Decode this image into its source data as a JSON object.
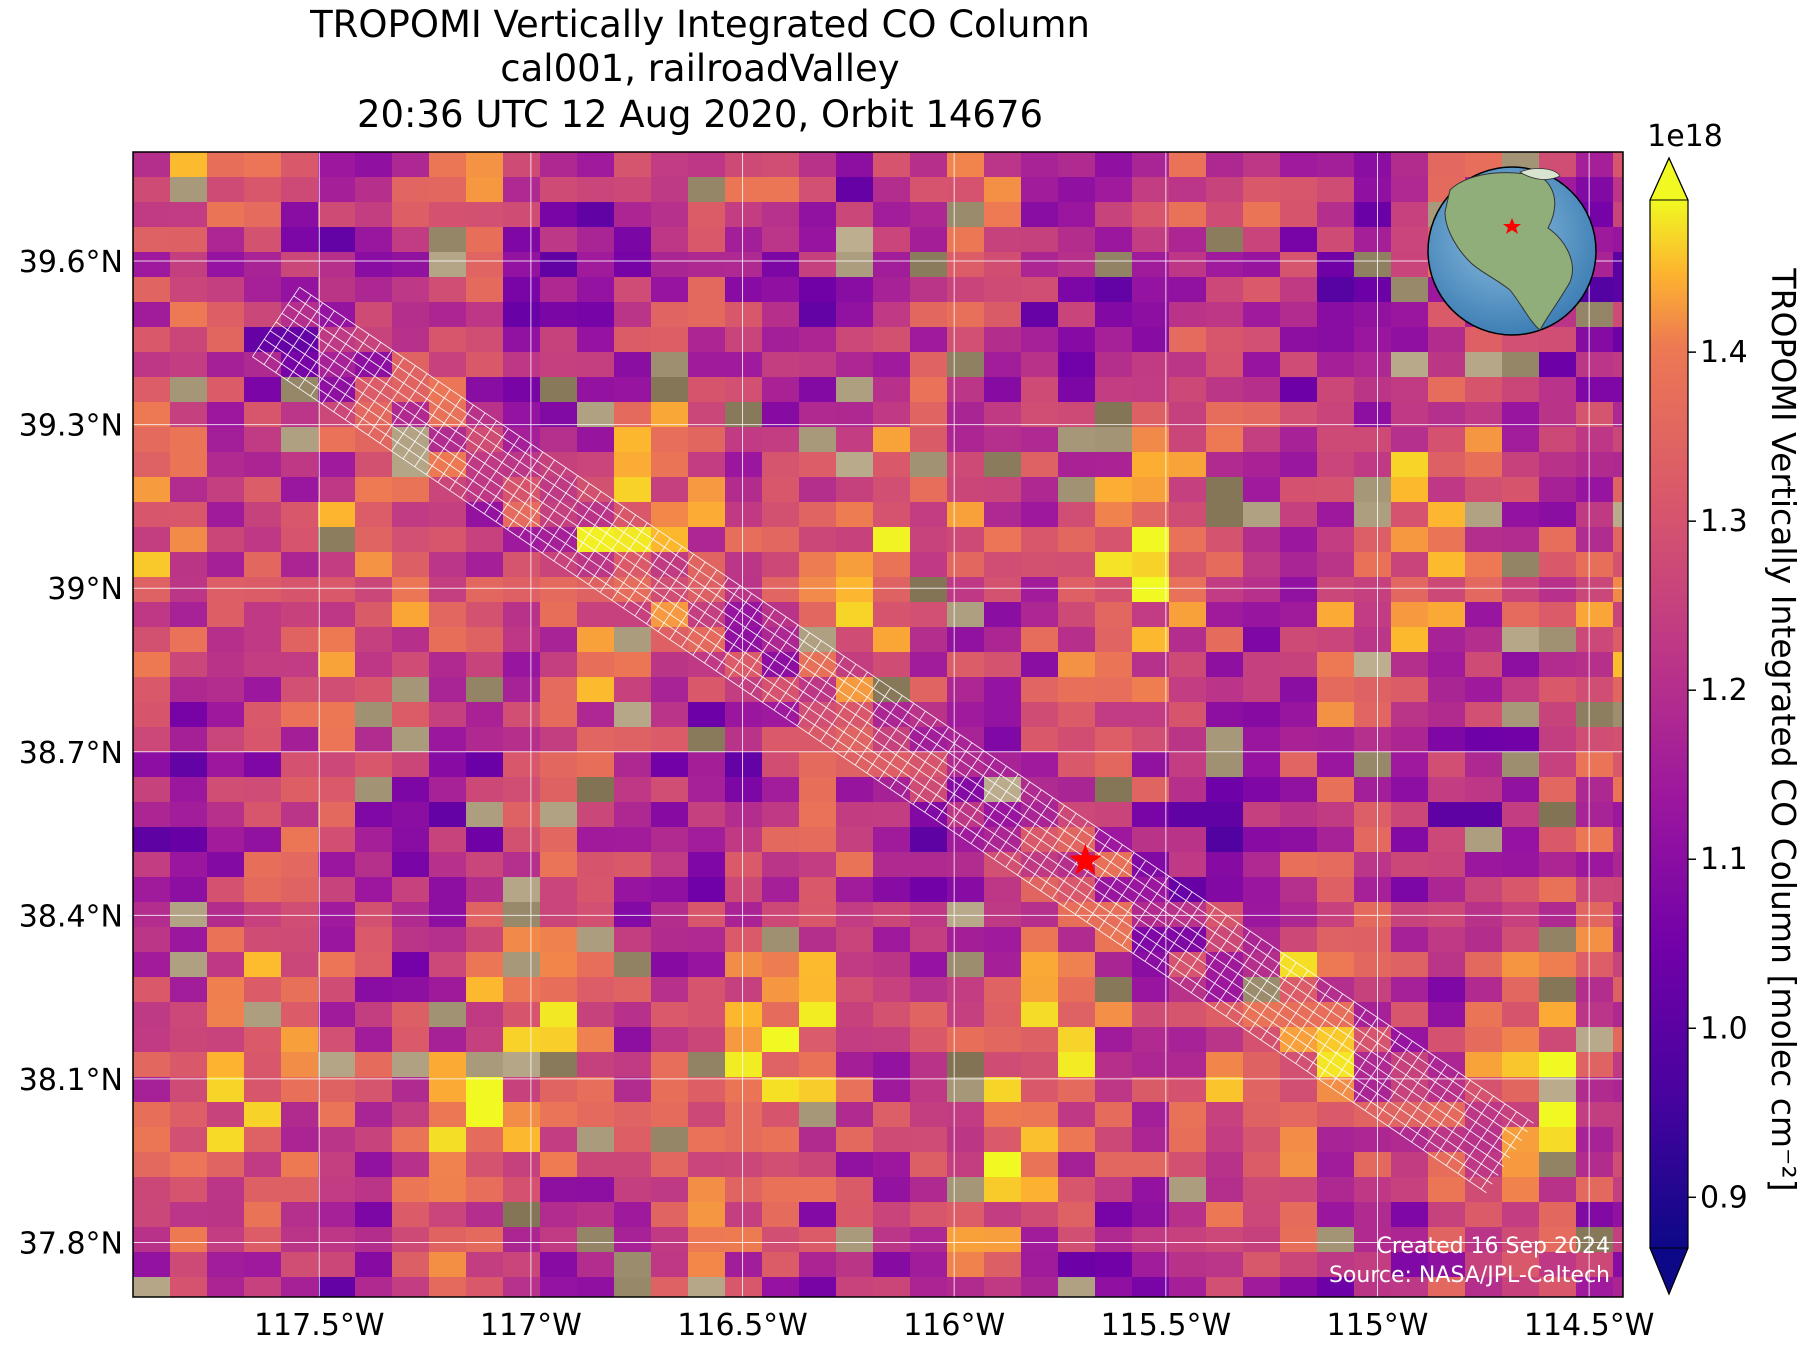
{
  "title": {
    "line1": "TROPOMI Vertically Integrated CO Column",
    "line2": "cal001, railroadValley",
    "line3": "20:36 UTC 12 Aug 2020, Orbit 14676"
  },
  "map": {
    "lon_range": [
      -117.94,
      -114.42
    ],
    "lat_range": [
      37.7,
      39.8
    ],
    "x_ticks": [
      {
        "value": -117.5,
        "label": "117.5°W"
      },
      {
        "value": -117.0,
        "label": "117°W"
      },
      {
        "value": -116.5,
        "label": "116.5°W"
      },
      {
        "value": -116.0,
        "label": "116°W"
      },
      {
        "value": -115.5,
        "label": "115.5°W"
      },
      {
        "value": -115.0,
        "label": "115°W"
      },
      {
        "value": -114.5,
        "label": "114.5°W"
      }
    ],
    "y_ticks": [
      {
        "value": 37.8,
        "label": "37.8°N"
      },
      {
        "value": 38.1,
        "label": "38.1°N"
      },
      {
        "value": 38.4,
        "label": "38.4°N"
      },
      {
        "value": 38.7,
        "label": "38.7°N"
      },
      {
        "value": 39.0,
        "label": "39°N"
      },
      {
        "value": 39.3,
        "label": "39.3°N"
      },
      {
        "value": 39.6,
        "label": "39.6°N"
      }
    ],
    "site_marker": {
      "lon": -115.69,
      "lat": 38.5,
      "color": "#ff0000",
      "icon": "star-icon"
    },
    "grid_color": "#ffffff",
    "colormap": "plasma"
  },
  "colorbar": {
    "label": "TROPOMI Vertically Integrated CO Column [molec cm⁻²]",
    "exponent": "1e18",
    "range": [
      0.87,
      1.49
    ],
    "ticks": [
      {
        "value": 0.9,
        "label": "0.9"
      },
      {
        "value": 1.0,
        "label": "1.0"
      },
      {
        "value": 1.1,
        "label": "1.1"
      },
      {
        "value": 1.2,
        "label": "1.2"
      },
      {
        "value": 1.3,
        "label": "1.3"
      },
      {
        "value": 1.4,
        "label": "1.4"
      }
    ],
    "extend": "both"
  },
  "inset": {
    "icon": "globe-icon",
    "ocean_color": "#4a8fc4",
    "land_color": "#7a9a6a"
  },
  "credits": {
    "created": "Created 16 Sep 2024",
    "source": "Source: NASA/JPL-Caltech"
  }
}
